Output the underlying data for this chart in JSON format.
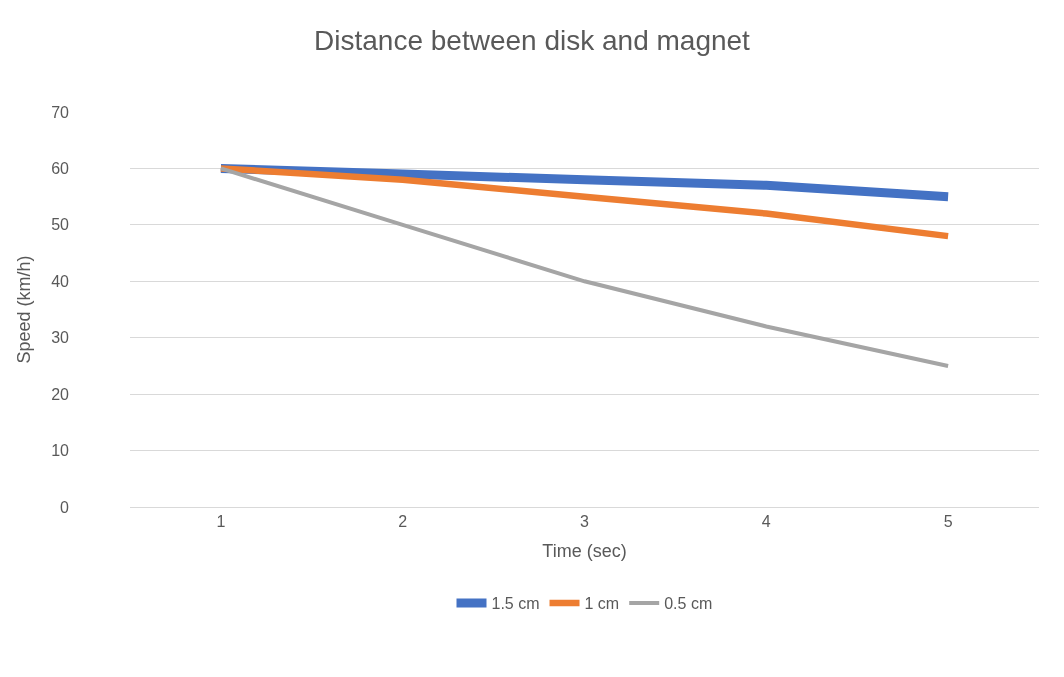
{
  "chart_data": {
    "type": "line",
    "title": "Distance between disk and magnet",
    "xlabel": "Time (sec)",
    "ylabel": "Speed (km/h)",
    "categories": [
      "1",
      "2",
      "3",
      "4",
      "5"
    ],
    "series": [
      {
        "name": "1.5 cm",
        "color": "#4472c4",
        "values": [
          60,
          59,
          58,
          57,
          55
        ]
      },
      {
        "name": "1 cm",
        "color": "#ed7d31",
        "values": [
          60,
          58,
          55,
          52,
          48
        ]
      },
      {
        "name": "0.5 cm",
        "color": "#a5a5a5",
        "values": [
          60,
          50,
          40,
          32,
          25
        ]
      }
    ],
    "ylim": [
      0,
      70
    ],
    "yticks": [
      0,
      10,
      20,
      30,
      40,
      50,
      60,
      70
    ],
    "grid": "y",
    "legend": "bottom",
    "marker": "none",
    "line_style": "solid"
  }
}
